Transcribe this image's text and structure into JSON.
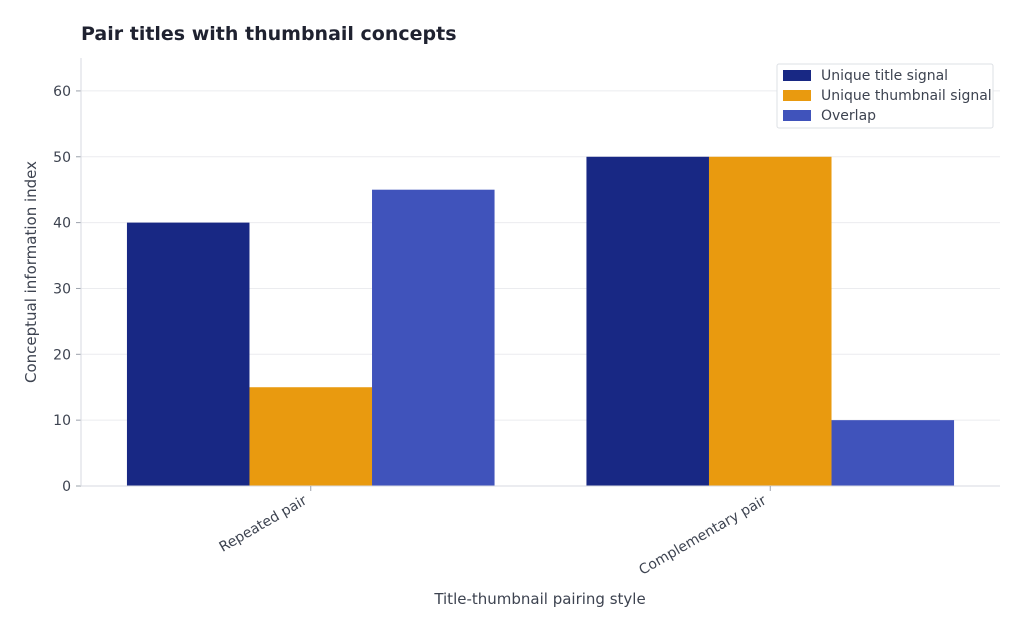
{
  "chart_data": {
    "type": "bar",
    "title": "Pair titles with thumbnail concepts",
    "xlabel": "Title-thumbnail pairing style",
    "ylabel": "Conceptual information index",
    "categories": [
      "Repeated pair",
      "Complementary pair"
    ],
    "series": [
      {
        "name": "Unique title signal",
        "values": [
          40,
          50
        ],
        "color": "#182884"
      },
      {
        "name": "Unique thumbnail signal",
        "values": [
          15,
          50
        ],
        "color": "#e99a0f"
      },
      {
        "name": "Overlap",
        "values": [
          45,
          10
        ],
        "color": "#4053bb"
      }
    ],
    "ylim": [
      0,
      65
    ],
    "yticks": [
      0,
      10,
      20,
      30,
      40,
      50,
      60
    ],
    "grid": true,
    "legend_position": "top-right"
  }
}
